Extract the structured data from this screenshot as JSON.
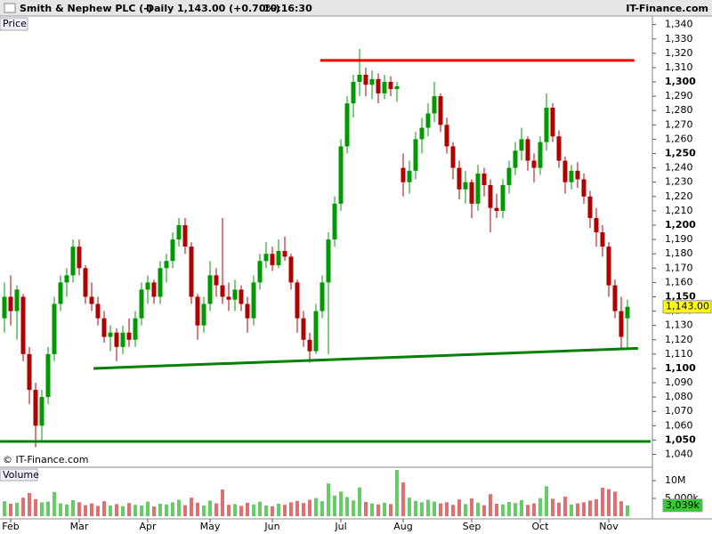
{
  "header": {
    "title": "Smith & Nephew PLC (-)",
    "period": "Daily",
    "quote": "1,143.00 (+0.70%)",
    "time": "10:16:30",
    "brand": "IT-Finance.com"
  },
  "chart_data": {
    "type": "candlestick",
    "price_label": "Price",
    "volume_label": "Volume",
    "copyright": "© IT-Finance.com",
    "up_color": "#009900",
    "down_color": "#b00000",
    "vol_up_color": "#66cc66",
    "vol_down_color": "#e07070",
    "categories": [
      null,
      "Feb",
      null,
      null,
      null,
      null,
      null,
      null,
      null,
      null,
      null,
      null,
      "Mar",
      null,
      null,
      null,
      null,
      null,
      null,
      null,
      null,
      null,
      null,
      "Apr",
      null,
      null,
      null,
      null,
      null,
      null,
      null,
      null,
      null,
      "May",
      null,
      null,
      null,
      null,
      null,
      null,
      null,
      null,
      null,
      "Jun",
      null,
      null,
      null,
      null,
      null,
      null,
      null,
      null,
      null,
      null,
      "Jul",
      null,
      null,
      null,
      null,
      null,
      null,
      null,
      null,
      null,
      "Aug",
      null,
      null,
      null,
      null,
      null,
      null,
      null,
      null,
      null,
      null,
      "Sep",
      null,
      null,
      null,
      null,
      null,
      null,
      null,
      null,
      null,
      null,
      "Oct",
      null,
      null,
      null,
      null,
      null,
      null,
      null,
      null,
      null,
      null,
      "Nov",
      null,
      null,
      null
    ],
    "ohlc": [
      [
        1135,
        1160,
        1125,
        1150
      ],
      [
        1150,
        1165,
        1130,
        1140
      ],
      [
        1140,
        1158,
        1120,
        1155
      ],
      [
        1150,
        1152,
        1105,
        1110
      ],
      [
        1110,
        1115,
        1075,
        1085
      ],
      [
        1085,
        1090,
        1045,
        1060
      ],
      [
        1060,
        1085,
        1050,
        1080
      ],
      [
        1080,
        1115,
        1075,
        1110
      ],
      [
        1110,
        1150,
        1105,
        1145
      ],
      [
        1145,
        1165,
        1140,
        1160
      ],
      [
        1160,
        1170,
        1150,
        1165
      ],
      [
        1165,
        1190,
        1160,
        1185
      ],
      [
        1185,
        1190,
        1165,
        1170
      ],
      [
        1170,
        1172,
        1145,
        1150
      ],
      [
        1150,
        1160,
        1140,
        1145
      ],
      [
        1145,
        1150,
        1130,
        1135
      ],
      [
        1135,
        1140,
        1118,
        1122
      ],
      [
        1122,
        1130,
        1112,
        1125
      ],
      [
        1125,
        1128,
        1105,
        1115
      ],
      [
        1115,
        1130,
        1110,
        1125
      ],
      [
        1125,
        1135,
        1115,
        1120
      ],
      [
        1120,
        1140,
        1115,
        1135
      ],
      [
        1135,
        1160,
        1130,
        1155
      ],
      [
        1155,
        1165,
        1145,
        1160
      ],
      [
        1160,
        1162,
        1145,
        1150
      ],
      [
        1150,
        1175,
        1145,
        1170
      ],
      [
        1170,
        1180,
        1160,
        1175
      ],
      [
        1175,
        1195,
        1170,
        1190
      ],
      [
        1190,
        1205,
        1185,
        1200
      ],
      [
        1200,
        1205,
        1180,
        1185
      ],
      [
        1185,
        1188,
        1145,
        1150
      ],
      [
        1150,
        1152,
        1120,
        1130
      ],
      [
        1130,
        1150,
        1125,
        1145
      ],
      [
        1145,
        1175,
        1140,
        1165
      ],
      [
        1165,
        1170,
        1150,
        1158
      ],
      [
        1158,
        1205,
        1145,
        1150
      ],
      [
        1150,
        1160,
        1140,
        1148
      ],
      [
        1148,
        1162,
        1140,
        1155
      ],
      [
        1155,
        1158,
        1140,
        1145
      ],
      [
        1145,
        1150,
        1125,
        1135
      ],
      [
        1135,
        1165,
        1130,
        1160
      ],
      [
        1160,
        1180,
        1155,
        1175
      ],
      [
        1175,
        1188,
        1170,
        1180
      ],
      [
        1180,
        1185,
        1168,
        1172
      ],
      [
        1172,
        1190,
        1170,
        1182
      ],
      [
        1182,
        1192,
        1175,
        1178
      ],
      [
        1178,
        1180,
        1155,
        1160
      ],
      [
        1160,
        1162,
        1125,
        1135
      ],
      [
        1135,
        1140,
        1115,
        1120
      ],
      [
        1120,
        1125,
        1104,
        1112
      ],
      [
        1112,
        1145,
        1110,
        1140
      ],
      [
        1140,
        1165,
        1135,
        1160
      ],
      [
        1160,
        1195,
        1110,
        1190
      ],
      [
        1190,
        1220,
        1185,
        1215
      ],
      [
        1215,
        1260,
        1210,
        1255
      ],
      [
        1255,
        1290,
        1250,
        1285
      ],
      [
        1285,
        1305,
        1275,
        1300
      ],
      [
        1300,
        1323,
        1290,
        1305
      ],
      [
        1305,
        1310,
        1290,
        1298
      ],
      [
        1298,
        1308,
        1288,
        1302
      ],
      [
        1302,
        1306,
        1285,
        1292
      ],
      [
        1292,
        1305,
        1288,
        1300
      ],
      [
        1300,
        1304,
        1290,
        1295
      ],
      [
        1295,
        1300,
        1286,
        1297
      ],
      [
        1240,
        1250,
        1220,
        1230
      ],
      [
        1230,
        1245,
        1222,
        1238
      ],
      [
        1238,
        1265,
        1232,
        1260
      ],
      [
        1260,
        1275,
        1250,
        1268
      ],
      [
        1268,
        1285,
        1262,
        1278
      ],
      [
        1278,
        1300,
        1272,
        1290
      ],
      [
        1290,
        1292,
        1265,
        1270
      ],
      [
        1270,
        1275,
        1250,
        1255
      ],
      [
        1255,
        1258,
        1232,
        1240
      ],
      [
        1240,
        1245,
        1218,
        1225
      ],
      [
        1225,
        1238,
        1215,
        1230
      ],
      [
        1230,
        1232,
        1205,
        1215
      ],
      [
        1215,
        1242,
        1210,
        1236
      ],
      [
        1236,
        1240,
        1220,
        1228
      ],
      [
        1228,
        1232,
        1195,
        1212
      ],
      [
        1212,
        1222,
        1205,
        1210
      ],
      [
        1210,
        1232,
        1205,
        1228
      ],
      [
        1228,
        1245,
        1222,
        1240
      ],
      [
        1240,
        1258,
        1235,
        1252
      ],
      [
        1252,
        1268,
        1245,
        1260
      ],
      [
        1260,
        1262,
        1238,
        1245
      ],
      [
        1245,
        1250,
        1230,
        1240
      ],
      [
        1240,
        1262,
        1235,
        1258
      ],
      [
        1258,
        1292,
        1252,
        1282
      ],
      [
        1282,
        1285,
        1258,
        1262
      ],
      [
        1262,
        1266,
        1240,
        1245
      ],
      [
        1245,
        1248,
        1222,
        1230
      ],
      [
        1230,
        1242,
        1225,
        1238
      ],
      [
        1238,
        1244,
        1226,
        1232
      ],
      [
        1232,
        1236,
        1215,
        1220
      ],
      [
        1220,
        1224,
        1198,
        1205
      ],
      [
        1205,
        1212,
        1185,
        1195
      ],
      [
        1195,
        1200,
        1178,
        1185
      ],
      [
        1185,
        1188,
        1150,
        1158
      ],
      [
        1158,
        1162,
        1135,
        1140
      ],
      [
        1140,
        1150,
        1113,
        1122
      ],
      [
        1135,
        1148,
        1113,
        1143
      ]
    ],
    "volume": [
      4200000,
      3500000,
      3800000,
      5200000,
      6500000,
      4800000,
      3900000,
      4100000,
      6800000,
      3600000,
      3300000,
      4500000,
      3900000,
      3100000,
      3600000,
      2900000,
      4200000,
      3000000,
      3400000,
      2800000,
      3700000,
      3200000,
      3000000,
      4100000,
      2700000,
      3500000,
      3300000,
      3900000,
      4600000,
      3100000,
      5200000,
      3800000,
      3000000,
      4400000,
      3600000,
      7500000,
      3200000,
      3400000,
      2900000,
      3800000,
      3300000,
      4100000,
      3000000,
      2800000,
      3500000,
      3200000,
      3900000,
      4300000,
      3700000,
      4600000,
      5100000,
      4200000,
      9200000,
      5800000,
      6900000,
      5400000,
      4400000,
      8100000,
      4000000,
      3600000,
      3300000,
      3800000,
      3400000,
      13000000,
      9500000,
      5200000,
      4300000,
      3900000,
      4600000,
      4100000,
      3600000,
      3900000,
      3200000,
      4700000,
      3400000,
      5000000,
      3800000,
      3100000,
      6200000,
      3500000,
      3300000,
      4000000,
      3700000,
      4500000,
      3200000,
      3600000,
      5100000,
      8400000,
      4900000,
      3800000,
      5500000,
      3300000,
      3600000,
      3900000,
      4400000,
      4800000,
      8000000,
      7600000,
      6900000,
      4200000,
      3039000
    ],
    "ylim": [
      1031,
      1346
    ],
    "yticks": [
      {
        "value": 1040,
        "label": "1,040"
      },
      {
        "value": 1050,
        "label": "1,050"
      },
      {
        "value": 1060,
        "label": "1,060"
      },
      {
        "value": 1070,
        "label": "1,070"
      },
      {
        "value": 1080,
        "label": "1,080"
      },
      {
        "value": 1090,
        "label": "1,090"
      },
      {
        "value": 1100,
        "label": "1,100"
      },
      {
        "value": 1110,
        "label": "1,110"
      },
      {
        "value": 1120,
        "label": "1,120"
      },
      {
        "value": 1130,
        "label": "1,130"
      },
      {
        "value": 1140,
        "label": "1,140"
      },
      {
        "value": 1150,
        "label": "1,150"
      },
      {
        "value": 1160,
        "label": "1,160"
      },
      {
        "value": 1170,
        "label": "1,170"
      },
      {
        "value": 1180,
        "label": "1,180"
      },
      {
        "value": 1190,
        "label": "1,190"
      },
      {
        "value": 1200,
        "label": "1,200"
      },
      {
        "value": 1210,
        "label": "1,210"
      },
      {
        "value": 1220,
        "label": "1,220"
      },
      {
        "value": 1230,
        "label": "1,230"
      },
      {
        "value": 1240,
        "label": "1,240"
      },
      {
        "value": 1250,
        "label": "1,250"
      },
      {
        "value": 1260,
        "label": "1,260"
      },
      {
        "value": 1270,
        "label": "1,270"
      },
      {
        "value": 1280,
        "label": "1,280"
      },
      {
        "value": 1290,
        "label": "1,290"
      },
      {
        "value": 1300,
        "label": "1,300"
      },
      {
        "value": 1310,
        "label": "1,310"
      },
      {
        "value": 1320,
        "label": "1,320"
      },
      {
        "value": 1330,
        "label": "1,330"
      },
      {
        "value": 1340,
        "label": "1,340"
      }
    ],
    "y2lim": [
      0,
      13250000
    ],
    "y2ticks": [
      {
        "value": 10000000,
        "label": "10M"
      },
      {
        "value": 5000000,
        "label": "5,000k"
      }
    ],
    "last_price": {
      "value": 1143,
      "label": "1,143.00",
      "color": "#ffff00"
    },
    "last_volume": {
      "value": 3039000,
      "label": "3,039k",
      "color": "#33cc33"
    },
    "lines": [
      {
        "color": "#ee0000",
        "from": [
          50.7,
          1315
        ],
        "to": [
          101.1,
          1315
        ]
      },
      {
        "color": "#008000",
        "from": [
          14.3,
          1100
        ],
        "to": [
          101.7,
          1114
        ]
      },
      {
        "color": "#008000",
        "from": [
          -0.7,
          1049
        ],
        "to": [
          103.7,
          1049
        ]
      }
    ]
  }
}
